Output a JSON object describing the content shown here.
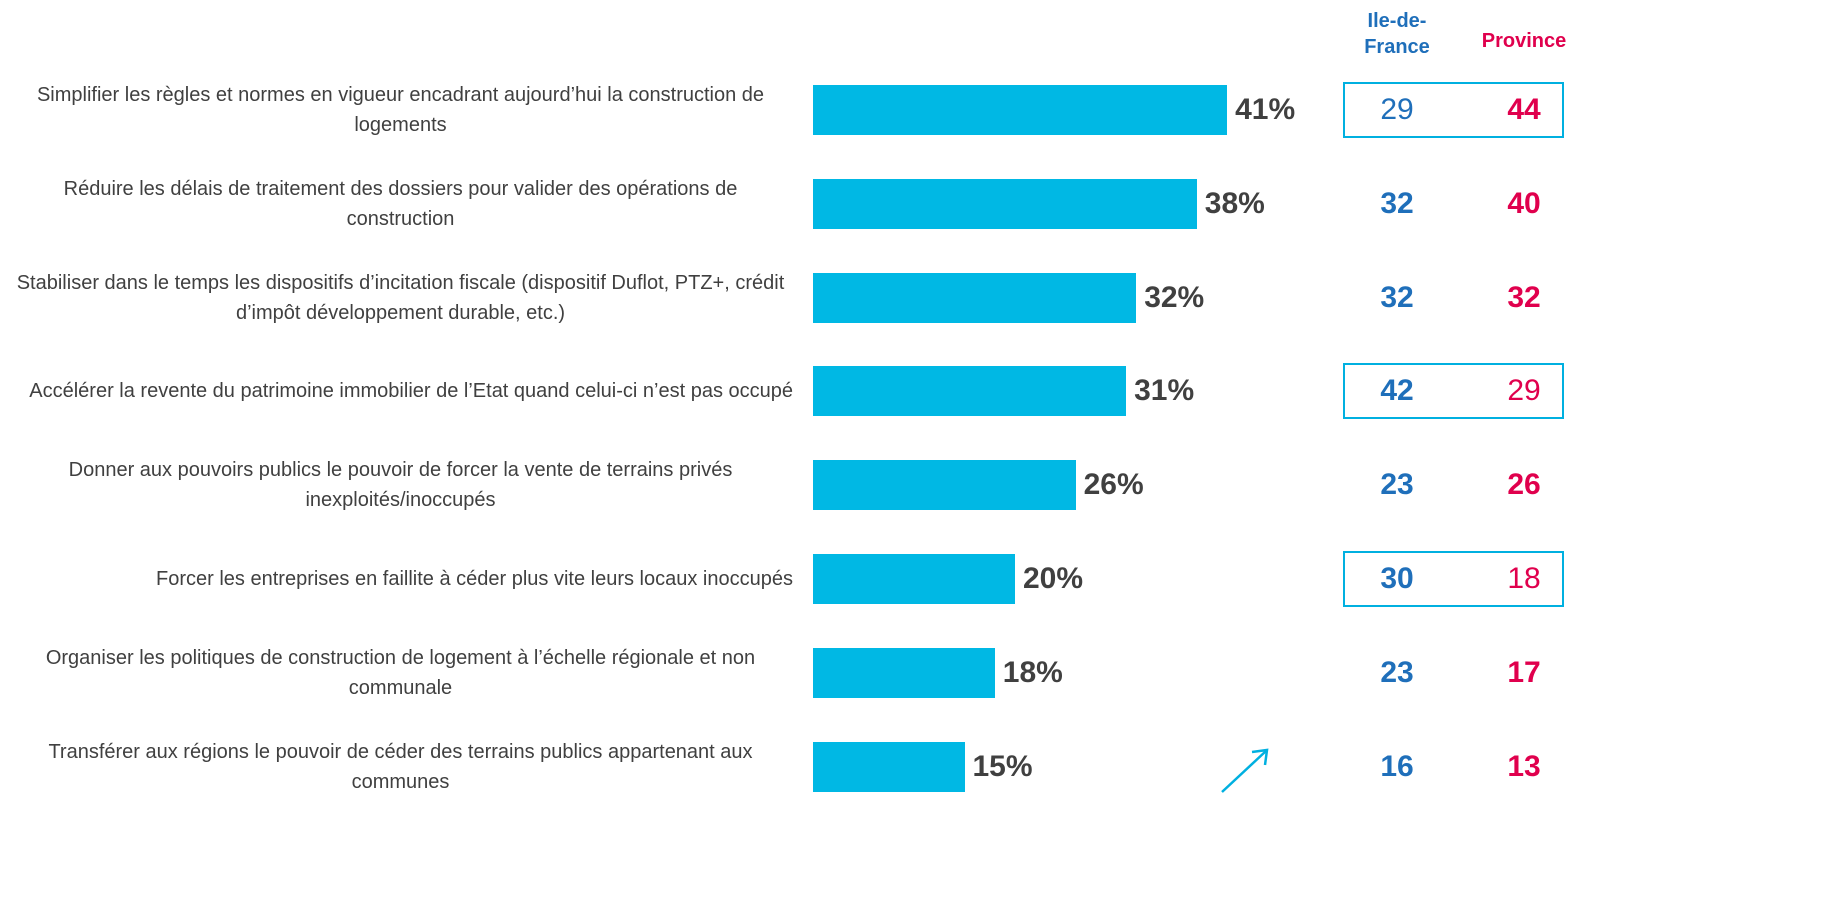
{
  "chart_data": {
    "type": "bar",
    "orientation": "horizontal",
    "categories": [
      "Simplifier les règles et normes en vigueur encadrant aujourd’hui la construction de logements",
      "Réduire les délais de traitement des dossiers pour valider des opérations de construction",
      "Stabiliser dans le temps les dispositifs d’incitation fiscale (dispositif Duflot, PTZ+, crédit d’impôt développement durable, etc.)",
      "Accélérer la revente du patrimoine immobilier de l’Etat quand celui-ci n’est pas occupé",
      "Donner aux pouvoirs publics le pouvoir de forcer la vente de terrains privés inexploités/inoccupés",
      "Forcer les entreprises en faillite à céder plus vite leurs locaux inoccupés",
      "Organiser les politiques de construction de logement à l’échelle régionale et non communale",
      "Transférer aux régions le pouvoir de céder des terrains publics appartenant aux communes"
    ],
    "values": [
      41,
      38,
      32,
      31,
      26,
      20,
      18,
      15
    ],
    "value_labels": [
      "41%",
      "38%",
      "32%",
      "31%",
      "26%",
      "20%",
      "18%",
      "15%"
    ],
    "color": "#00b8e4",
    "table": {
      "columns": [
        {
          "name": "Ile-de-France",
          "color": "#1f6fba",
          "values": [
            29,
            32,
            32,
            42,
            23,
            30,
            23,
            16
          ]
        },
        {
          "name": "Province",
          "color": "#e0004d",
          "values": [
            44,
            40,
            32,
            29,
            26,
            18,
            17,
            13
          ]
        }
      ],
      "highlight_rows": [
        0,
        3,
        5
      ],
      "highlight_color": "#00b0e0"
    }
  }
}
